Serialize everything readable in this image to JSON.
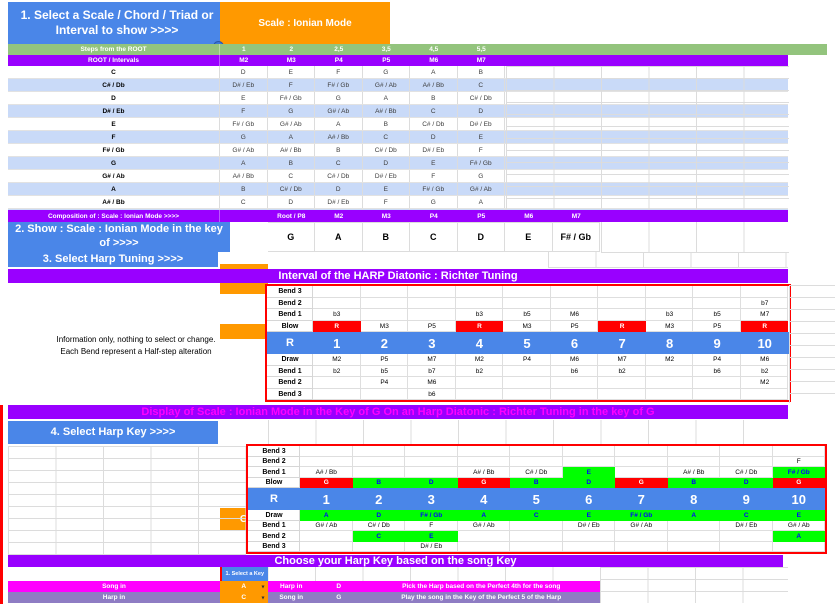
{
  "palette": {
    "blue": "#4a86e8",
    "orange": "#ff9900",
    "green_header": "#93c47d",
    "purple": "#9900ff",
    "light_blue_row": "#c9daf8",
    "red": "#ff0000",
    "bright_green": "#00ff00",
    "magenta": "#ff00ff",
    "violet_gray": "#8e7cc3"
  },
  "ui": {
    "dropdown_glyph": "▾"
  },
  "section1": {
    "title": "1. Select a Scale / Chord / Triad or Interval to show >>>>",
    "scale_dropdown": "Scale : Ionian Mode",
    "steps_row": {
      "label": "Steps from the ROOT",
      "values": [
        "1",
        "2",
        "2,5",
        "3,5",
        "4,5",
        "5,5"
      ]
    },
    "intervals_row": {
      "label": "ROOT / Intervals",
      "values": [
        "M2",
        "M3",
        "P4",
        "P5",
        "M6",
        "M7"
      ]
    },
    "note_table": [
      {
        "root": "C",
        "notes": [
          "D",
          "E",
          "F",
          "G",
          "A",
          "B"
        ]
      },
      {
        "root": "C# / Db",
        "notes": [
          "D# / Eb",
          "F",
          "F# / Gb",
          "G# / Ab",
          "A# / Bb",
          "C"
        ]
      },
      {
        "root": "D",
        "notes": [
          "E",
          "F# / Gb",
          "G",
          "A",
          "B",
          "C# / Db"
        ]
      },
      {
        "root": "D# / Eb",
        "notes": [
          "F",
          "G",
          "G# / Ab",
          "A# / Bb",
          "C",
          "D"
        ]
      },
      {
        "root": "E",
        "notes": [
          "F# / Gb",
          "G# / Ab",
          "A",
          "B",
          "C# / Db",
          "D# / Eb"
        ]
      },
      {
        "root": "F",
        "notes": [
          "G",
          "A",
          "A# / Bb",
          "C",
          "D",
          "E"
        ]
      },
      {
        "root": "F# / Gb",
        "notes": [
          "G# / Ab",
          "A# / Bb",
          "B",
          "C# / Db",
          "D# / Eb",
          "F"
        ]
      },
      {
        "root": "G",
        "notes": [
          "A",
          "B",
          "C",
          "D",
          "E",
          "F# / Gb"
        ]
      },
      {
        "root": "G# / Ab",
        "notes": [
          "A# / Bb",
          "C",
          "C# / Db",
          "D# / Eb",
          "F",
          "G"
        ]
      },
      {
        "root": "A",
        "notes": [
          "B",
          "C# / Db",
          "D",
          "E",
          "F# / Gb",
          "G# / Ab"
        ]
      },
      {
        "root": "A# / Bb",
        "notes": [
          "C",
          "D",
          "D# / Eb",
          "F",
          "G",
          "A"
        ]
      },
      {
        "root": "B",
        "notes": [
          "C# / Db",
          "D# / Eb",
          "E",
          "F# / Gb",
          "G# / Ab",
          "A# / Bb"
        ]
      }
    ]
  },
  "composition_row": {
    "label": "Composition of :  Scale : Ionian Mode >>>>",
    "headers": [
      "",
      "Root / P8",
      "M2",
      "M3",
      "P4",
      "P5",
      "M6",
      "M7"
    ]
  },
  "show_row": {
    "title": "2. Show : Scale : Ionian Mode in the key of >>>>",
    "key_dropdown": "G",
    "notes": [
      "G",
      "A",
      "B",
      "C",
      "D",
      "E",
      "F# / Gb"
    ]
  },
  "tuning_row": {
    "title": "3. Select Harp Tuning  >>>>",
    "dropdown": "Diatonic : Richter Tuning"
  },
  "interval_section": {
    "header": "Interval of the HARP  Diatonic : Richter Tuning",
    "info_line1": "Information only, nothing to select or change.",
    "info_line2": "Each Bend represent a Half-step alteration",
    "table": {
      "rows": [
        {
          "label": "Bend 3",
          "cells": [
            "",
            "",
            "",
            "",
            "",
            "",
            "",
            "",
            "",
            ""
          ]
        },
        {
          "label": "Bend 2",
          "cells": [
            "",
            "",
            "",
            "",
            "",
            "",
            "",
            "",
            "",
            "b7"
          ]
        },
        {
          "label": "Bend 1",
          "cells": [
            "b3",
            "",
            "",
            "b3",
            "b5",
            "M6",
            "",
            "b3",
            "b5",
            "M7"
          ]
        },
        {
          "label": "Blow",
          "cells": [
            "R",
            "M3",
            "P5",
            "R",
            "M3",
            "P5",
            "R",
            "M3",
            "P5",
            "R"
          ],
          "colors": [
            "r",
            "",
            "",
            "r",
            "",
            "",
            "r",
            "",
            "",
            "r"
          ]
        },
        {
          "label": "R",
          "kind": "num",
          "cells": [
            "1",
            "2",
            "3",
            "4",
            "5",
            "6",
            "7",
            "8",
            "9",
            "10"
          ]
        },
        {
          "label": "Draw",
          "cells": [
            "M2",
            "P5",
            "M7",
            "M2",
            "P4",
            "M6",
            "M7",
            "M2",
            "P4",
            "M6"
          ]
        },
        {
          "label": "Bend 1",
          "cells": [
            "b2",
            "b5",
            "b7",
            "b2",
            "",
            "b6",
            "b2",
            "",
            "b6",
            "b2"
          ]
        },
        {
          "label": "Bend 2",
          "cells": [
            "",
            "P4",
            "M6",
            "",
            "",
            "",
            "",
            "",
            "",
            "M2"
          ]
        },
        {
          "label": "Bend 3",
          "cells": [
            "",
            "",
            "b6",
            "",
            "",
            "",
            "",
            "",
            "",
            ""
          ]
        }
      ]
    }
  },
  "display_section": {
    "header": "Display of Scale : Ionian Mode in the Key of G On an Harp Diatonic : Richter Tuning in the key of G",
    "select_title": "4. Select Harp Key  >>>>",
    "key_dropdown": "G",
    "table": {
      "rows": [
        {
          "label": "Bend 3",
          "cells": [
            "",
            "",
            "",
            "",
            "",
            "",
            "",
            "",
            "",
            ""
          ]
        },
        {
          "label": "Bend 2",
          "cells": [
            "",
            "",
            "",
            "",
            "",
            "",
            "",
            "",
            "",
            "F"
          ]
        },
        {
          "label": "Bend 1",
          "cells": [
            "A# / Bb",
            "",
            "",
            "A# / Bb",
            "C# / Db",
            "E",
            "",
            "A# / Bb",
            "C# / Db",
            "F# / Gb"
          ],
          "colors": [
            "",
            "",
            "",
            "",
            "",
            "g",
            "",
            "",
            "",
            "g"
          ]
        },
        {
          "label": "Blow",
          "cells": [
            "G",
            "B",
            "D",
            "G",
            "B",
            "D",
            "G",
            "B",
            "D",
            "G"
          ],
          "colors": [
            "r",
            "g",
            "g",
            "r",
            "g",
            "g",
            "r",
            "g",
            "g",
            "r"
          ]
        },
        {
          "label": "R",
          "kind": "num",
          "cells": [
            "1",
            "2",
            "3",
            "4",
            "5",
            "6",
            "7",
            "8",
            "9",
            "10"
          ]
        },
        {
          "label": "Draw",
          "cells": [
            "A",
            "D",
            "F# / Gb",
            "A",
            "C",
            "E",
            "F# / Gb",
            "A",
            "C",
            "E"
          ],
          "colors": [
            "g",
            "g",
            "g",
            "g",
            "g",
            "g",
            "g",
            "g",
            "g",
            "g"
          ]
        },
        {
          "label": "Bend 1",
          "cells": [
            "G# / Ab",
            "C# / Db",
            "F",
            "G# / Ab",
            "",
            "D# / Eb",
            "G# / Ab",
            "",
            "D# / Eb",
            "G# / Ab"
          ]
        },
        {
          "label": "Bend 2",
          "cells": [
            "",
            "C",
            "E",
            "",
            "",
            "",
            "",
            "",
            "",
            "A"
          ],
          "colors": [
            "",
            "g",
            "g",
            "",
            "",
            "",
            "",
            "",
            "",
            "g"
          ]
        },
        {
          "label": "Bend 3",
          "cells": [
            "",
            "",
            "D# / Eb",
            "",
            "",
            "",
            "",
            "",
            "",
            ""
          ]
        }
      ]
    }
  },
  "choose_section": {
    "header": "Choose your Harp Key based on the song Key",
    "select_key_label": "1. Select a Key",
    "row1": {
      "label": "Song in",
      "dropdown": "A",
      "mid_label": "Harp in",
      "mid_value": "D",
      "note": "Pick the Harp based on the Perfect 4th for the song"
    },
    "row2": {
      "label": "Harp in",
      "dropdown": "C",
      "mid_label": "Song in",
      "mid_value": "G",
      "note": "Play the song in the Key of the Perfect 5 of the Harp"
    }
  }
}
